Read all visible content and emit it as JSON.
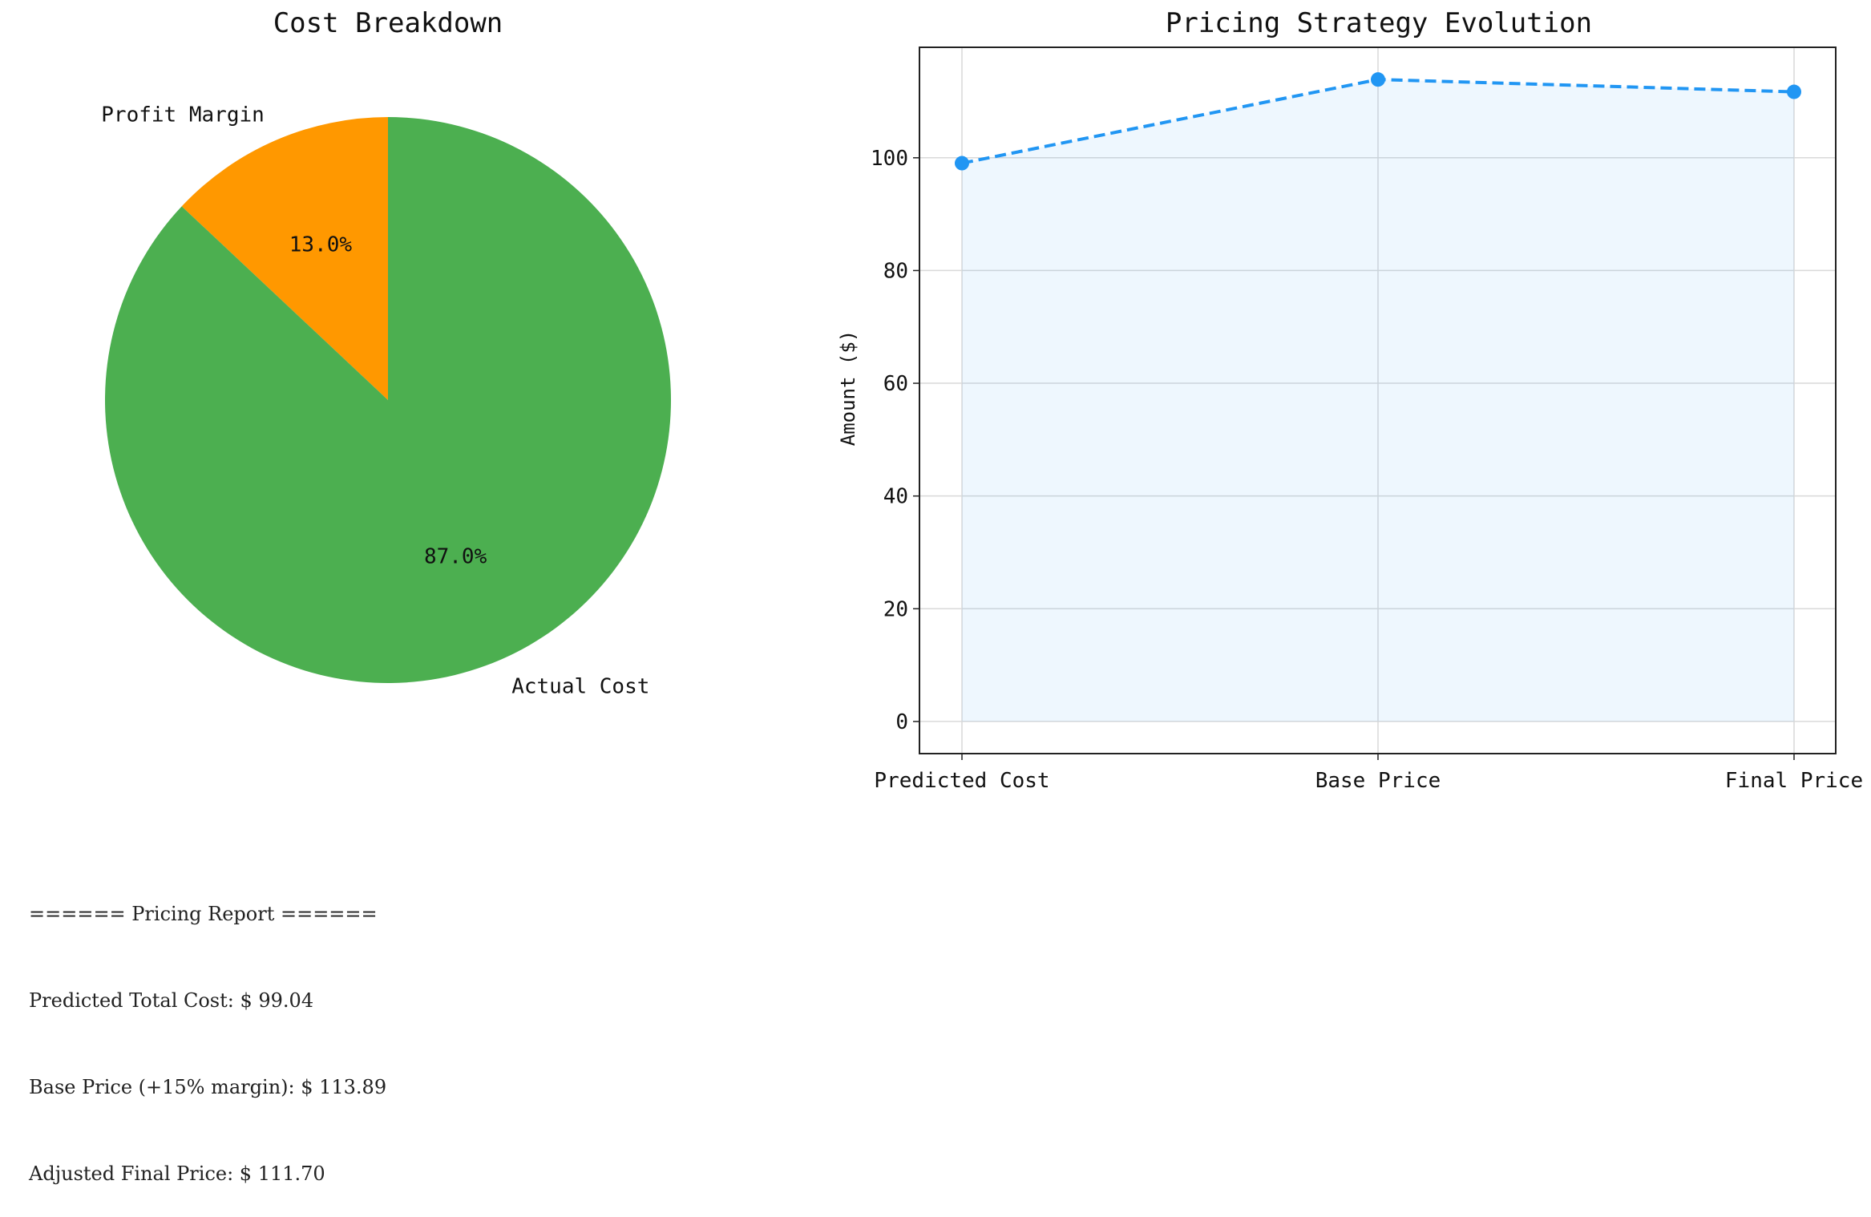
{
  "chart_data": [
    {
      "type": "pie",
      "title": "Cost Breakdown",
      "labels": [
        "Profit Margin",
        "Actual Cost"
      ],
      "values": [
        13.0,
        87.0
      ],
      "autopct_labels": [
        "13.0%",
        "87.0%"
      ],
      "colors": [
        "#ff9800",
        "#4caf50"
      ],
      "start_angle": "90°, counterclockwise, slices in list order",
      "legend": "none"
    },
    {
      "type": "line",
      "title": "Pricing Strategy Evolution",
      "categories": [
        "Predicted Cost",
        "Base Price",
        "Final Price"
      ],
      "series": [
        {
          "values": [
            99.04,
            113.89,
            111.7
          ],
          "color": "#2196f3"
        }
      ],
      "line_style": "dashed",
      "markers": "circle",
      "fill_under": true,
      "fill_color": "#2196f3",
      "xlabel": "",
      "ylabel": "Amount ($)",
      "ylim": [
        -5.7,
        119.6
      ],
      "yticks": [
        0,
        20,
        40,
        60,
        80,
        100
      ],
      "grid": true,
      "legend": "none"
    }
  ],
  "report": {
    "lines": [
      "====== Pricing Report ======",
      "Predicted Total Cost: $ 99.04",
      "Base Price (+15% margin): $ 113.89",
      "Adjusted Final Price: $ 111.70"
    ]
  }
}
